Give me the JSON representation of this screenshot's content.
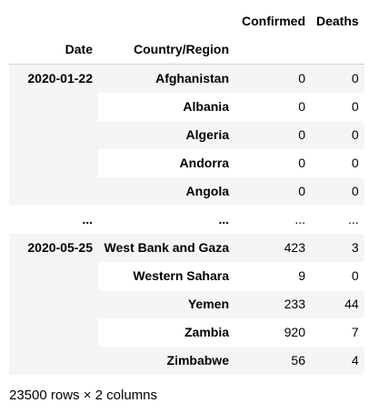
{
  "columns": {
    "confirmed": "Confirmed",
    "deaths": "Deaths"
  },
  "index_names": {
    "date": "Date",
    "country": "Country/Region"
  },
  "groups": [
    {
      "date": "2020-01-22",
      "rows": [
        {
          "country": "Afghanistan",
          "confirmed": "0",
          "deaths": "0"
        },
        {
          "country": "Albania",
          "confirmed": "0",
          "deaths": "0"
        },
        {
          "country": "Algeria",
          "confirmed": "0",
          "deaths": "0"
        },
        {
          "country": "Andorra",
          "confirmed": "0",
          "deaths": "0"
        },
        {
          "country": "Angola",
          "confirmed": "0",
          "deaths": "0"
        }
      ]
    },
    {
      "date": "2020-05-25",
      "rows": [
        {
          "country": "West Bank and Gaza",
          "confirmed": "423",
          "deaths": "3"
        },
        {
          "country": "Western Sahara",
          "confirmed": "9",
          "deaths": "0"
        },
        {
          "country": "Yemen",
          "confirmed": "233",
          "deaths": "44"
        },
        {
          "country": "Zambia",
          "confirmed": "920",
          "deaths": "7"
        },
        {
          "country": "Zimbabwe",
          "confirmed": "56",
          "deaths": "4"
        }
      ]
    }
  ],
  "ellipsis": {
    "date": "...",
    "country": "...",
    "confirmed": "...",
    "deaths": "..."
  },
  "footer": "23500 rows × 2 columns"
}
